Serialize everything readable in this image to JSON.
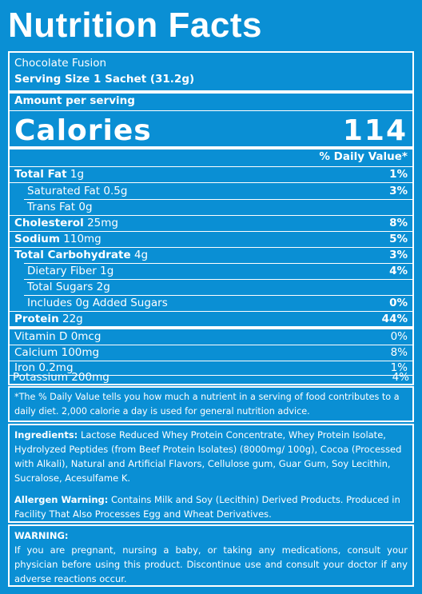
{
  "title": "Nutrition Facts",
  "product": "Chocolate Fusion",
  "serving": "Serving Size  1 Sachet (31.2g)",
  "amount_per_serving": "Amount per serving",
  "calories_label": "Calories",
  "calories_value": "114",
  "dv_header": "% Daily Value*",
  "nutrients": [
    {
      "name": "Total Fat",
      "amount": "1g",
      "dv": "1%"
    },
    {
      "name": "Saturated Fat",
      "amount": "0.5g",
      "dv": "3%"
    },
    {
      "name": "Trans Fat",
      "amount": "0g",
      "dv": ""
    },
    {
      "name": "Cholesterol",
      "amount": "25mg",
      "dv": "8%"
    },
    {
      "name": "Sodium",
      "amount": "110mg",
      "dv": "5%"
    },
    {
      "name": "Total Carbohydrate",
      "amount": "4g",
      "dv": "3%"
    },
    {
      "name": "Dietary Fiber",
      "amount": "1g",
      "dv": "4%"
    },
    {
      "name": "Total Sugars",
      "amount": "2g",
      "dv": ""
    },
    {
      "name": "Includes 0g Added Sugars",
      "amount": "",
      "dv": "0%"
    },
    {
      "name": "Protein",
      "amount": "22g",
      "dv": "44%"
    }
  ],
  "vitamins": [
    {
      "text": "Vitamin D 0mcg",
      "dv": "0%"
    },
    {
      "text": "Calcium 100mg",
      "dv": "8%"
    },
    {
      "text": "Iron 0.2mg",
      "dv": "1%"
    },
    {
      "text": "Potassium 200mg",
      "dv": "4%"
    }
  ],
  "footnote": "*The % Daily Value tells you how much a nutrient in a serving of food contributes to a daily diet. 2,000 calorie a day is used for general nutrition advice.",
  "ingredients_label": "Ingredients:",
  "ingredients": "Lactose Reduced Whey Protein Concentrate, Whey Protein Isolate, Hydrolyzed Peptides (from Beef Protein Isolates) (8000mg/ 100g), Cocoa (Processed with Alkali), Natural and Artificial Flavors, Cellulose gum, Guar Gum, Soy Lecithin, Sucralose, Acesulfame K.",
  "allergen_label": "Allergen Warning:",
  "allergen": "Contains Milk and Soy (Lecithin) Derived Products. Produced in Facility That Also Processes Egg and Wheat Derivatives.",
  "warning_label": "WARNING:",
  "warning": "If you are pregnant, nursing a baby, or taking any medications, consult your physician before using this product. Discontinue use and consult your doctor if any adverse reactions occur.",
  "colors": {
    "background": "#0a8fd4",
    "text": "#ffffff"
  }
}
